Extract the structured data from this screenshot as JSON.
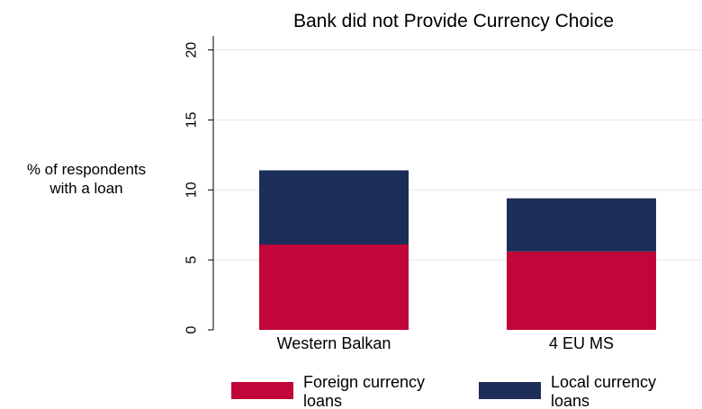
{
  "chart_data": {
    "type": "bar",
    "stacked": true,
    "title": "Bank did not Provide Currency Choice",
    "ylabel_lines": [
      "% of respondents",
      "with a loan"
    ],
    "categories": [
      "Western Balkan",
      "4 EU MS"
    ],
    "ylim": [
      0,
      21
    ],
    "yticks": [
      0,
      5,
      10,
      15,
      20
    ],
    "grid": true,
    "legend_position": "bottom",
    "series": [
      {
        "name": "Foreign currency loans",
        "legend_lines": [
          "Foreign currency",
          "loans"
        ],
        "color": "#c0063a",
        "values": [
          6.1,
          5.6
        ]
      },
      {
        "name": "Local currency loans",
        "legend_lines": [
          "Local currency",
          "loans"
        ],
        "color": "#1c2e58",
        "values": [
          5.3,
          3.8
        ]
      }
    ]
  }
}
